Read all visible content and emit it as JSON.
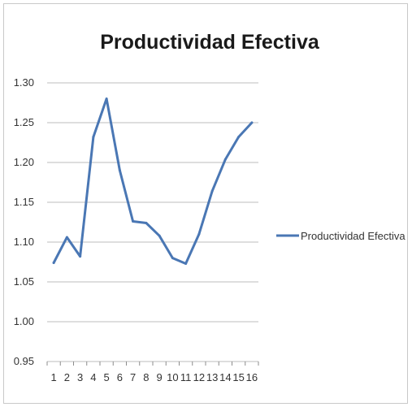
{
  "chart_data": {
    "type": "line",
    "title": "Productividad Efectiva",
    "xlabel": "",
    "ylabel": "",
    "x": [
      "1",
      "2",
      "3",
      "4",
      "5",
      "6",
      "7",
      "8",
      "9",
      "10",
      "11",
      "12",
      "13",
      "14",
      "15",
      "16"
    ],
    "y_ticks": [
      "0.95",
      "1.00",
      "1.05",
      "1.10",
      "1.15",
      "1.20",
      "1.25",
      "1.30"
    ],
    "ylim": [
      0.95,
      1.3
    ],
    "grid": true,
    "legend_position": "right",
    "series": [
      {
        "name": "Productividad Efectiva",
        "color": "#4a77b4",
        "values": [
          1.074,
          1.106,
          1.082,
          1.232,
          1.28,
          1.19,
          1.126,
          1.124,
          1.108,
          1.08,
          1.073,
          1.11,
          1.164,
          1.204,
          1.232,
          1.25
        ]
      }
    ]
  }
}
